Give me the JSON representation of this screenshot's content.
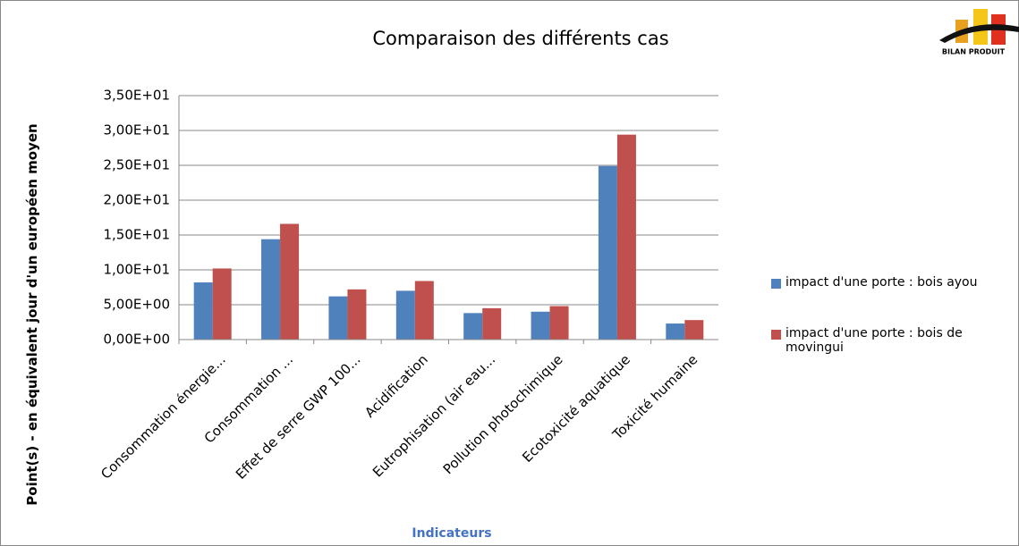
{
  "chart_data": {
    "type": "bar",
    "title": "Comparaison des différents cas",
    "logo_text": "BILAN PRODUIT",
    "x_label": "Indicateurs",
    "y_label": "Point(s)  - en équivalent  jour d'un européen moyen",
    "categories": [
      "Consommation énergie...",
      "Consommation ...",
      "Effet de serre GWP 100...",
      "Acidification",
      "Eutrophisation (air eau...",
      "Pollution photochimique",
      "Ecotoxicité aquatique",
      "Toxicité humaine"
    ],
    "series": [
      {
        "name": "impact d'une porte : bois ayou",
        "color": "#4f81bd",
        "values": [
          8.2,
          14.4,
          6.2,
          7.0,
          3.8,
          4.0,
          24.9,
          2.3
        ]
      },
      {
        "name": "impact d'une porte : bois de movingui",
        "color": "#c0504d",
        "values": [
          10.2,
          16.6,
          7.2,
          8.4,
          4.5,
          4.8,
          29.4,
          2.8
        ]
      }
    ],
    "ylim": [
      0,
      35
    ],
    "yticks": [
      {
        "value": 0,
        "label": "0,00E+00"
      },
      {
        "value": 5,
        "label": "5,00E+00"
      },
      {
        "value": 10,
        "label": "1,00E+01"
      },
      {
        "value": 15,
        "label": "1,50E+01"
      },
      {
        "value": 20,
        "label": "2,00E+01"
      },
      {
        "value": 25,
        "label": "2,50E+01"
      },
      {
        "value": 30,
        "label": "3,00E+01"
      },
      {
        "value": 35,
        "label": "3,50E+01"
      }
    ],
    "grid": true
  }
}
